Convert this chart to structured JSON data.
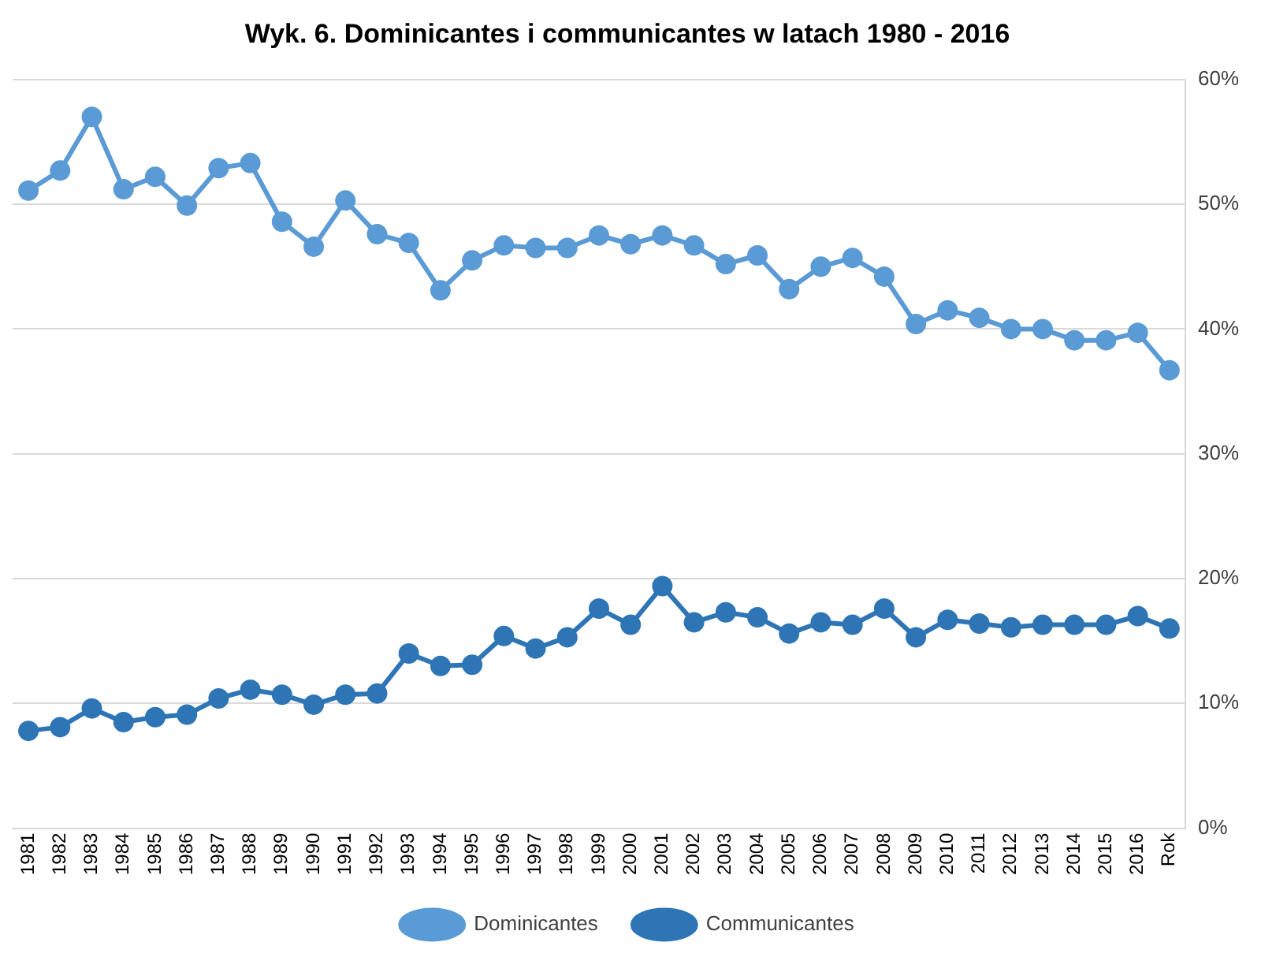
{
  "chart_data": {
    "type": "line",
    "title": "Wyk. 6. Dominicantes i communicantes w latach 1980 - 2016",
    "categories": [
      "1981",
      "1982",
      "1983",
      "1984",
      "1985",
      "1986",
      "1987",
      "1988",
      "1989",
      "1990",
      "1991",
      "1992",
      "1993",
      "1994",
      "1995",
      "1996",
      "1997",
      "1998",
      "1999",
      "2000",
      "2001",
      "2002",
      "2003",
      "2004",
      "2005",
      "2006",
      "2007",
      "2008",
      "2009",
      "2010",
      "2011",
      "2012",
      "2013",
      "2014",
      "2015",
      "2016",
      "Rok"
    ],
    "series": [
      {
        "name": "Dominicantes",
        "color": "#5b9bd5",
        "values": [
          51.1,
          52.7,
          57,
          51.2,
          52.2,
          49.9,
          52.9,
          53.3,
          48.6,
          46.6,
          50.3,
          47.6,
          46.9,
          43.1,
          45.5,
          46.7,
          46.5,
          46.5,
          47.5,
          46.8,
          47.5,
          46.7,
          45.2,
          45.9,
          43.2,
          45.0,
          45.7,
          44.2,
          40.4,
          41.5,
          40.9,
          40.0,
          40.0,
          39.1,
          39.1,
          39.7,
          36.7
        ]
      },
      {
        "name": "Communicantes",
        "color": "#2e75b6",
        "values": [
          7.8,
          8.1,
          9.6,
          8.5,
          8.9,
          9.1,
          10.4,
          11.1,
          10.7,
          9.9,
          10.7,
          10.8,
          14.0,
          13.0,
          13.1,
          15.4,
          14.4,
          15.3,
          17.6,
          16.3,
          19.4,
          16.5,
          17.3,
          16.9,
          15.6,
          16.5,
          16.3,
          17.6,
          15.3,
          16.7,
          16.4,
          16.1,
          16.3,
          16.3,
          16.3,
          17.0,
          16.0
        ]
      }
    ],
    "ylim": [
      0,
      60
    ],
    "yticks": [
      {
        "value": 0,
        "label": "0%"
      },
      {
        "value": 10,
        "label": "10%"
      },
      {
        "value": 20,
        "label": "20%"
      },
      {
        "value": 30,
        "label": "30%"
      },
      {
        "value": 40,
        "label": "40%"
      },
      {
        "value": 50,
        "label": "50%"
      },
      {
        "value": 60,
        "label": "60%"
      }
    ],
    "grid": "y",
    "legend": "bottom",
    "marker": "circle",
    "line_style": "solid"
  }
}
